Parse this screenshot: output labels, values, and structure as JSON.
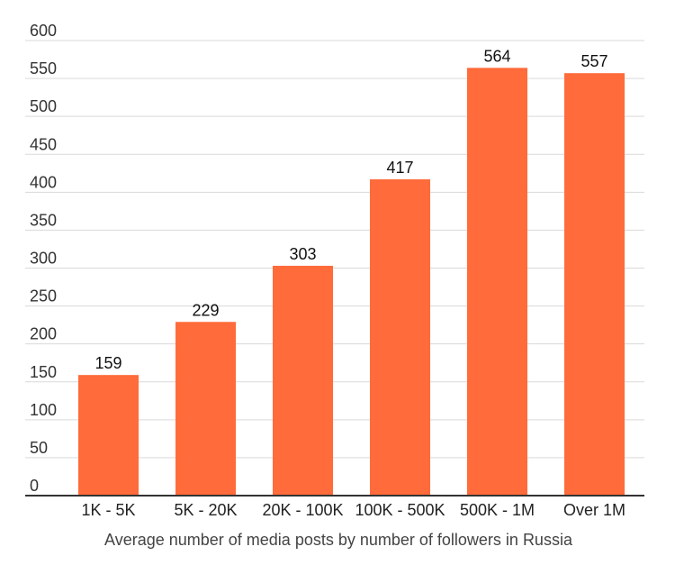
{
  "chart_data": {
    "type": "bar",
    "title": "",
    "xlabel": "Average number of media posts by number of followers in Russia",
    "ylabel": "",
    "categories": [
      "1K - 5K",
      "5K - 20K",
      "20K - 100K",
      "100K - 500K",
      "500K - 1M",
      "Over 1M"
    ],
    "values": [
      159,
      229,
      303,
      417,
      564,
      557
    ],
    "data_labels": [
      "159",
      "229",
      "303",
      "417",
      "564",
      "557"
    ],
    "ylim": [
      0,
      600
    ],
    "yticks": [
      0,
      50,
      100,
      150,
      200,
      250,
      300,
      350,
      400,
      450,
      500,
      550,
      600
    ],
    "grid": true,
    "legend": "none",
    "bar_color": "#ff6b3a"
  }
}
